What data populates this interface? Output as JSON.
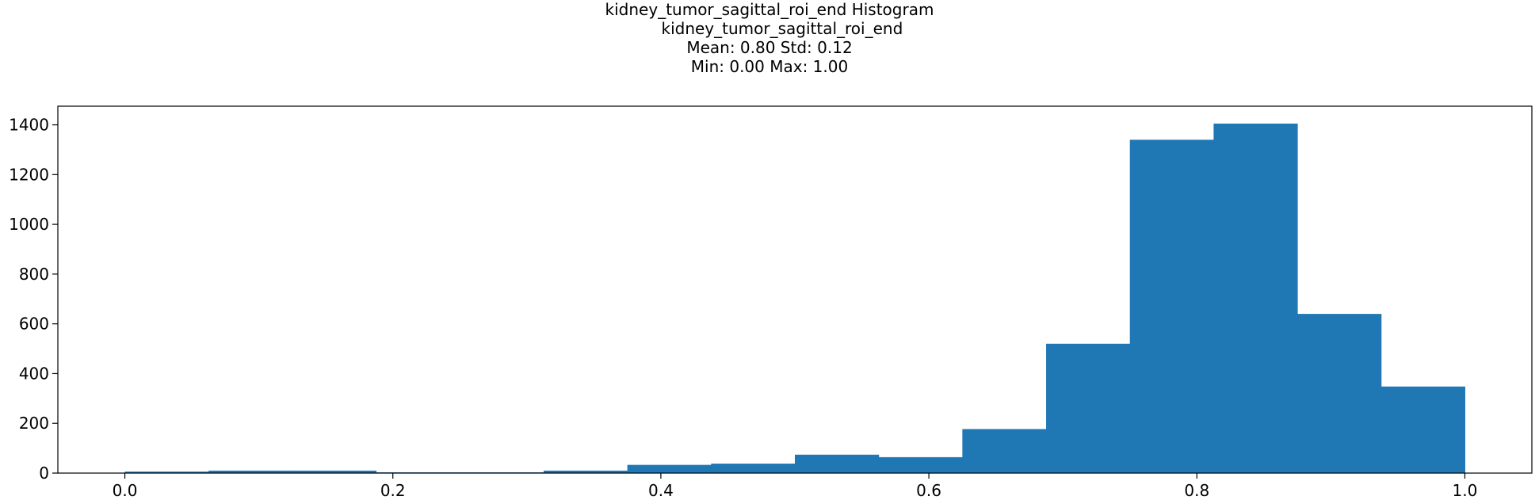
{
  "title_lines": [
    "kidney_tumor_sagittal_roi_end Histogram",
    "     kidney_tumor_sagittal_roi_end",
    "Mean: 0.80 Std: 0.12",
    "Min: 0.00 Max: 1.00"
  ],
  "chart_data": {
    "type": "bar",
    "title": "kidney_tumor_sagittal_roi_end Histogram",
    "subtitle": "kidney_tumor_sagittal_roi_end\nMean: 0.80 Std: 0.12\nMin: 0.00 Max: 1.00",
    "xlabel": "",
    "ylabel": "",
    "bin_edges": [
      0.0,
      0.0625,
      0.125,
      0.1875,
      0.25,
      0.3125,
      0.375,
      0.4375,
      0.5,
      0.5625,
      0.625,
      0.6875,
      0.75,
      0.8125,
      0.875,
      0.9375,
      1.0
    ],
    "values": [
      6,
      10,
      10,
      3,
      3,
      10,
      33,
      38,
      74,
      64,
      177,
      520,
      1340,
      1405,
      640,
      348
    ],
    "xlim": [
      -0.05,
      1.05
    ],
    "ylim": [
      0,
      1475
    ],
    "xticks": [
      0.0,
      0.2,
      0.4,
      0.6,
      0.8,
      1.0
    ],
    "xtick_labels": [
      "0.0",
      "0.2",
      "0.4",
      "0.6",
      "0.8",
      "1.0"
    ],
    "yticks": [
      0,
      200,
      400,
      600,
      800,
      1000,
      1200,
      1400
    ],
    "ytick_labels": [
      "0",
      "200",
      "400",
      "600",
      "800",
      "1000",
      "1200",
      "1400"
    ],
    "bar_color": "#1f77b4",
    "grid": false,
    "legend": "none"
  }
}
